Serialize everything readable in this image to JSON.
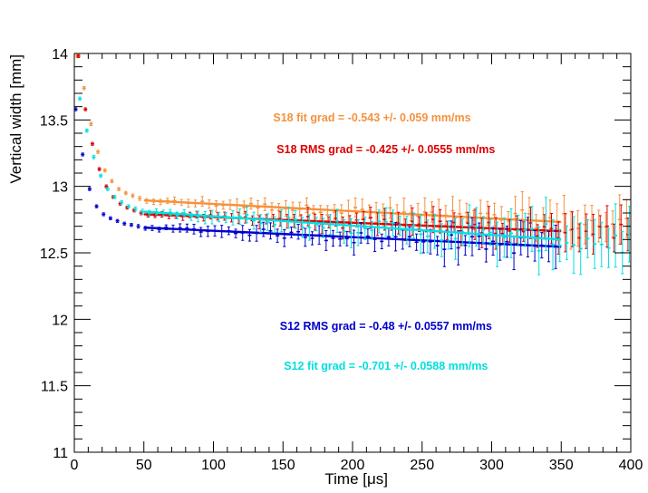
{
  "chart_data": {
    "type": "scatter",
    "xlabel": "Time [μs]",
    "ylabel": "Vertical width [mm]",
    "xlim": [
      0,
      400
    ],
    "ylim": [
      11,
      14
    ],
    "x_ticks": [
      0,
      50,
      100,
      150,
      200,
      250,
      300,
      350,
      400
    ],
    "y_ticks": [
      11,
      11.5,
      12,
      12.5,
      13,
      13.5,
      14
    ],
    "grid": false,
    "annotations": [
      {
        "text": "S18 fit grad = -0.543 +/- 0.059 mm/ms",
        "color": "#f5923e",
        "x": 214,
        "y": 13.49
      },
      {
        "text": "S18 RMS grad = -0.425 +/- 0.0555 mm/ms",
        "color": "#dd0000",
        "x": 224,
        "y": 13.25
      },
      {
        "text": "S12 RMS grad = -0.48 +/- 0.0557 mm/ms",
        "color": "#0000cc",
        "x": 224,
        "y": 11.92
      },
      {
        "text": "S12 fit grad = -0.701 +/- 0.0588 mm/ms",
        "color": "#00e0e0",
        "x": 224,
        "y": 11.62
      }
    ],
    "series": [
      {
        "color": "#f5923e",
        "x0": 2,
        "dx": 5,
        "n": 80,
        "early": [
          13.98,
          13.74,
          13.47,
          13.26,
          13.12,
          13.04,
          12.98,
          12.95,
          12.93,
          12.91
        ],
        "level_at_50": 12.895,
        "slope_per_us": -0.000543,
        "err_base": 0.012,
        "err_growth": 0.00036,
        "fit": {
          "x_start": 50,
          "x_end": 350,
          "y_start": 12.895,
          "y_end": 12.732
        }
      },
      {
        "color": "#dd0000",
        "x0": 3,
        "dx": 5,
        "n": 80,
        "early": [
          13.98,
          13.58,
          13.32,
          13.13,
          13.0,
          12.92,
          12.87,
          12.84,
          12.82,
          12.8
        ],
        "level_at_50": 12.79,
        "slope_per_us": -0.000425,
        "err_base": 0.011,
        "err_growth": 0.00034,
        "fit": {
          "x_start": 50,
          "x_end": 350,
          "y_start": 12.79,
          "y_end": 12.663
        }
      },
      {
        "color": "#0000cc",
        "x0": 1,
        "dx": 5,
        "n": 70,
        "early": [
          13.58,
          13.24,
          12.98,
          12.85,
          12.79,
          12.76,
          12.74,
          12.72,
          12.71,
          12.7
        ],
        "level_at_50": 12.69,
        "slope_per_us": -0.00048,
        "err_base": 0.011,
        "err_growth": 0.0004,
        "fit": {
          "x_start": 50,
          "x_end": 350,
          "y_start": 12.69,
          "y_end": 12.546
        }
      },
      {
        "color": "#00e0e0",
        "x0": 4,
        "dx": 5,
        "n": 80,
        "early": [
          13.66,
          13.42,
          13.22,
          13.08,
          12.98,
          12.92,
          12.88,
          12.85,
          12.83,
          12.81
        ],
        "level_at_50": 12.81,
        "slope_per_us": -0.000701,
        "err_base": 0.012,
        "err_growth": 0.00048,
        "fit": {
          "x_start": 50,
          "x_end": 350,
          "y_start": 12.81,
          "y_end": 12.6
        }
      }
    ]
  }
}
